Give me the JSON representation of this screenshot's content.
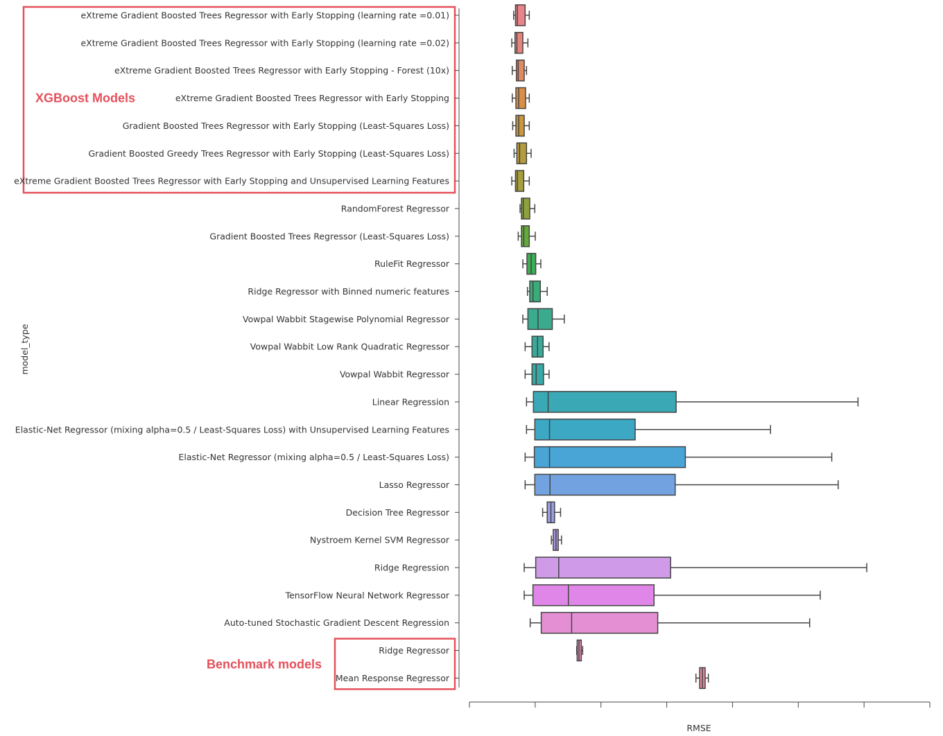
{
  "chart_data": {
    "type": "box",
    "orientation": "horizontal",
    "xlabel": "RMSE",
    "ylabel": "model_type",
    "grid": false,
    "x_tick_count": 8,
    "x_tick_labels_visible": false,
    "stat_units": "relative position along RMSE axis (0 = first tick, 1 = last tick); numeric tick labels not shown",
    "categories": [
      "eXtreme Gradient Boosted Trees Regressor with Early Stopping (learning rate =0.01)",
      "eXtreme Gradient Boosted Trees Regressor with Early Stopping (learning rate =0.02)",
      "eXtreme Gradient Boosted Trees Regressor with Early Stopping - Forest (10x)",
      "eXtreme Gradient Boosted Trees Regressor with Early Stopping",
      "Gradient Boosted Trees Regressor with Early Stopping (Least-Squares Loss)",
      "Gradient Boosted Greedy Trees Regressor with Early Stopping (Least-Squares Loss)",
      "eXtreme Gradient Boosted Trees Regressor with Early Stopping and Unsupervised Learning Features",
      "RandomForest Regressor",
      "Gradient Boosted Trees Regressor (Least-Squares Loss)",
      "RuleFit Regressor",
      "Ridge Regressor with Binned numeric features",
      "Vowpal Wabbit Stagewise Polynomial Regressor",
      "Vowpal Wabbit Low Rank Quadratic Regressor",
      "Vowpal Wabbit Regressor",
      "Linear Regression",
      "Elastic-Net Regressor (mixing alpha=0.5 / Least-Squares Loss) with Unsupervised Learning Features",
      "Elastic-Net Regressor (mixing alpha=0.5 / Least-Squares Loss)",
      "Lasso Regressor",
      "Decision Tree Regressor",
      "Nystroem Kernel SVM Regressor",
      "Ridge Regression",
      "TensorFlow Neural Network Regressor",
      "Auto-tuned Stochastic Gradient Descent Regression",
      "Ridge Regressor",
      "Mean Response Regressor"
    ],
    "series": [
      {
        "min": 0.096,
        "q1": 0.1,
        "median": 0.104,
        "q3": 0.121,
        "max": 0.13,
        "color": "#e8848b"
      },
      {
        "min": 0.092,
        "q1": 0.099,
        "median": 0.103,
        "q3": 0.116,
        "max": 0.127,
        "color": "#e5847c"
      },
      {
        "min": 0.093,
        "q1": 0.102,
        "median": 0.106,
        "q3": 0.119,
        "max": 0.124,
        "color": "#e08a63"
      },
      {
        "min": 0.093,
        "q1": 0.101,
        "median": 0.107,
        "q3": 0.122,
        "max": 0.13,
        "color": "#d98f4a"
      },
      {
        "min": 0.094,
        "q1": 0.101,
        "median": 0.107,
        "q3": 0.119,
        "max": 0.13,
        "color": "#c8973e"
      },
      {
        "min": 0.097,
        "q1": 0.103,
        "median": 0.109,
        "q3": 0.124,
        "max": 0.134,
        "color": "#b59b3d"
      },
      {
        "min": 0.092,
        "q1": 0.1,
        "median": 0.104,
        "q3": 0.118,
        "max": 0.13,
        "color": "#a69f3c"
      },
      {
        "min": 0.11,
        "q1": 0.113,
        "median": 0.117,
        "q3": 0.131,
        "max": 0.142,
        "color": "#8da23c"
      },
      {
        "min": 0.106,
        "q1": 0.113,
        "median": 0.118,
        "q3": 0.13,
        "max": 0.143,
        "color": "#66a83d"
      },
      {
        "min": 0.116,
        "q1": 0.125,
        "median": 0.134,
        "q3": 0.144,
        "max": 0.155,
        "color": "#3fad56"
      },
      {
        "min": 0.126,
        "q1": 0.131,
        "median": 0.138,
        "q3": 0.154,
        "max": 0.169,
        "color": "#3aac79"
      },
      {
        "min": 0.116,
        "q1": 0.127,
        "median": 0.149,
        "q3": 0.18,
        "max": 0.206,
        "color": "#3aab8f"
      },
      {
        "min": 0.121,
        "q1": 0.136,
        "median": 0.148,
        "q3": 0.16,
        "max": 0.173,
        "color": "#39aa9a"
      },
      {
        "min": 0.121,
        "q1": 0.136,
        "median": 0.145,
        "q3": 0.161,
        "max": 0.173,
        "color": "#39a9a6"
      },
      {
        "min": 0.124,
        "q1": 0.139,
        "median": 0.171,
        "q3": 0.449,
        "max": 0.844,
        "color": "#3aa9b5"
      },
      {
        "min": 0.124,
        "q1": 0.142,
        "median": 0.174,
        "q3": 0.36,
        "max": 0.654,
        "color": "#3ca8c4"
      },
      {
        "min": 0.121,
        "q1": 0.141,
        "median": 0.174,
        "q3": 0.469,
        "max": 0.787,
        "color": "#48a5d6"
      },
      {
        "min": 0.121,
        "q1": 0.142,
        "median": 0.175,
        "q3": 0.447,
        "max": 0.801,
        "color": "#72a3e0"
      },
      {
        "min": 0.159,
        "q1": 0.169,
        "median": 0.177,
        "q3": 0.185,
        "max": 0.198,
        "color": "#9b9fe2"
      },
      {
        "min": 0.178,
        "q1": 0.182,
        "median": 0.188,
        "q3": 0.193,
        "max": 0.2,
        "color": "#ac98e0"
      },
      {
        "min": 0.119,
        "q1": 0.144,
        "median": 0.194,
        "q3": 0.437,
        "max": 0.863,
        "color": "#cf9be8"
      },
      {
        "min": 0.119,
        "q1": 0.138,
        "median": 0.215,
        "q3": 0.401,
        "max": 0.762,
        "color": "#e086e9"
      },
      {
        "min": 0.132,
        "q1": 0.156,
        "median": 0.222,
        "q3": 0.409,
        "max": 0.739,
        "color": "#e48fd4"
      },
      {
        "min": 0.233,
        "q1": 0.234,
        "median": 0.238,
        "q3": 0.243,
        "max": 0.246,
        "color": "#e58cb8"
      },
      {
        "min": 0.492,
        "q1": 0.5,
        "median": 0.506,
        "q3": 0.512,
        "max": 0.519,
        "color": "#e5899d"
      }
    ],
    "annotations": [
      {
        "text": "XGBoost Models",
        "group_first": 0,
        "group_last": 6,
        "color": "#e5505a"
      },
      {
        "text": "Benchmark models",
        "group_first": 23,
        "group_last": 24,
        "color": "#e5505a"
      }
    ]
  }
}
